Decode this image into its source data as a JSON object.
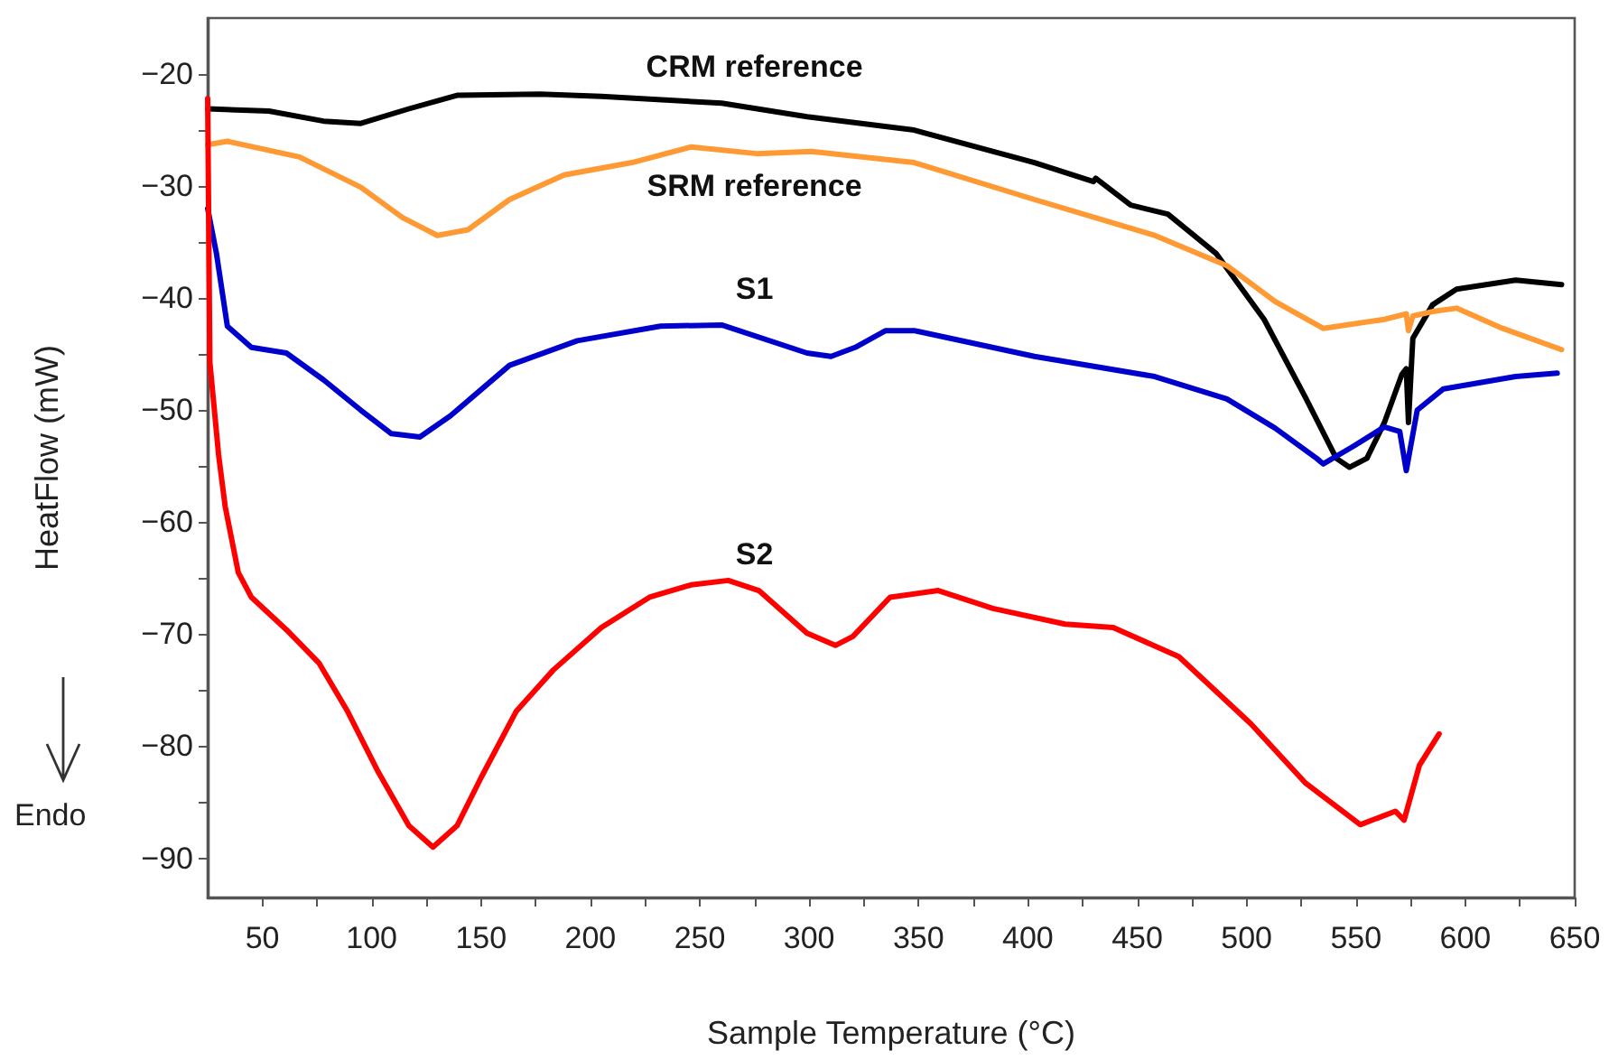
{
  "chart_data": {
    "type": "line",
    "xlabel": "Sample Temperature (°C)",
    "ylabel": "HeatFlow (mW)",
    "xlim": [
      25,
      650
    ],
    "ylim": [
      -93.5,
      -15
    ],
    "xticks": [
      {
        "value": 50,
        "label": "50"
      },
      {
        "value": 75,
        "label": null
      },
      {
        "value": 100,
        "label": "100"
      },
      {
        "value": 125,
        "label": null
      },
      {
        "value": 150,
        "label": "150"
      },
      {
        "value": 175,
        "label": null
      },
      {
        "value": 200,
        "label": "200"
      },
      {
        "value": 225,
        "label": null
      },
      {
        "value": 250,
        "label": "250"
      },
      {
        "value": 275,
        "label": null
      },
      {
        "value": 300,
        "label": "300"
      },
      {
        "value": 325,
        "label": null
      },
      {
        "value": 350,
        "label": "350"
      },
      {
        "value": 375,
        "label": null
      },
      {
        "value": 400,
        "label": "400"
      },
      {
        "value": 425,
        "label": null
      },
      {
        "value": 450,
        "label": "450"
      },
      {
        "value": 475,
        "label": null
      },
      {
        "value": 500,
        "label": "500"
      },
      {
        "value": 525,
        "label": null
      },
      {
        "value": 550,
        "label": "550"
      },
      {
        "value": 575,
        "label": null
      },
      {
        "value": 600,
        "label": "600"
      },
      {
        "value": 625,
        "label": null
      },
      {
        "value": 650,
        "label": "650"
      }
    ],
    "yticks": [
      {
        "value": -90,
        "label": "−90"
      },
      {
        "value": -85,
        "label": null
      },
      {
        "value": -80,
        "label": "−80"
      },
      {
        "value": -75,
        "label": null
      },
      {
        "value": -70,
        "label": "−70"
      },
      {
        "value": -65,
        "label": null
      },
      {
        "value": -60,
        "label": "−60"
      },
      {
        "value": -55,
        "label": null
      },
      {
        "value": -50,
        "label": "−50"
      },
      {
        "value": -45,
        "label": null
      },
      {
        "value": -40,
        "label": "−40"
      },
      {
        "value": -35,
        "label": null
      },
      {
        "value": -30,
        "label": "−30"
      },
      {
        "value": -25,
        "label": null
      },
      {
        "value": -20,
        "label": "−20"
      }
    ],
    "grid": false,
    "marker": "none",
    "line_style": "solid",
    "series": [
      {
        "name": "CRM reference",
        "color": "#000000",
        "x": [
          25,
          53,
          78,
          95,
          117,
          139,
          177,
          205,
          260,
          299,
          348,
          403,
          430,
          431,
          447,
          464,
          486,
          508,
          527,
          541,
          547,
          555,
          563,
          571,
          573,
          574,
          576,
          585,
          596,
          623,
          644
        ],
        "values": [
          -23.1,
          -23.3,
          -24.2,
          -24.4,
          -23.1,
          -21.9,
          -21.8,
          -22.0,
          -22.6,
          -23.8,
          -25.0,
          -27.9,
          -29.6,
          -29.3,
          -31.7,
          -32.5,
          -36.0,
          -41.9,
          -48.9,
          -54.3,
          -55.1,
          -54.3,
          -51.1,
          -46.8,
          -46.3,
          -51.1,
          -43.6,
          -40.6,
          -39.2,
          -38.4,
          -38.8
        ]
      },
      {
        "name": "SRM reference",
        "color": "#ff9933",
        "x": [
          25,
          34,
          67,
          95,
          114,
          130,
          144,
          163,
          188,
          219,
          246,
          276,
          301,
          348,
          403,
          458,
          491,
          513,
          535,
          563,
          573,
          574,
          576,
          585,
          596,
          617,
          644
        ],
        "values": [
          -26.3,
          -26.0,
          -27.4,
          -30.1,
          -32.8,
          -34.4,
          -33.9,
          -31.2,
          -29.0,
          -27.9,
          -26.5,
          -27.1,
          -26.9,
          -27.9,
          -31.2,
          -34.4,
          -37.1,
          -40.3,
          -42.7,
          -41.9,
          -41.4,
          -42.9,
          -41.6,
          -41.2,
          -40.9,
          -42.7,
          -44.6
        ]
      },
      {
        "name": "S1",
        "color": "#0000cc",
        "x": [
          25,
          29,
          34,
          45,
          61,
          78,
          95,
          109,
          122,
          136,
          163,
          194,
          232,
          260,
          299,
          310,
          321,
          335,
          348,
          403,
          458,
          491,
          513,
          532,
          535,
          549,
          563,
          570,
          573,
          578,
          590,
          623,
          642
        ],
        "values": [
          -32.0,
          -36.0,
          -42.5,
          -44.4,
          -44.9,
          -47.3,
          -50.0,
          -52.1,
          -52.4,
          -50.5,
          -46.0,
          -43.8,
          -42.5,
          -42.4,
          -44.9,
          -45.2,
          -44.4,
          -42.9,
          -42.9,
          -45.2,
          -47.0,
          -49.0,
          -51.6,
          -54.3,
          -54.8,
          -53.2,
          -51.5,
          -51.9,
          -55.4,
          -50.0,
          -48.1,
          -47.0,
          -46.7
        ]
      },
      {
        "name": "S2",
        "color": "#ff0000",
        "x": [
          25,
          26,
          30,
          33,
          39,
          45,
          61,
          76,
          89,
          103,
          117,
          128,
          139,
          150,
          166,
          183,
          205,
          227,
          246,
          263,
          277,
          299,
          312,
          320,
          337,
          359,
          384,
          417,
          439,
          469,
          502,
          527,
          552,
          568,
          572,
          579,
          588
        ],
        "values": [
          -22.2,
          -45.7,
          -54.0,
          -58.6,
          -64.5,
          -66.7,
          -69.6,
          -72.6,
          -76.9,
          -82.3,
          -87.1,
          -89.0,
          -87.1,
          -82.8,
          -76.9,
          -73.2,
          -69.4,
          -66.7,
          -65.6,
          -65.2,
          -66.1,
          -69.9,
          -71.0,
          -70.2,
          -66.7,
          -66.1,
          -67.7,
          -69.1,
          -69.4,
          -72.0,
          -78.0,
          -83.3,
          -87.0,
          -85.8,
          -86.6,
          -81.7,
          -78.9
        ]
      }
    ],
    "annotations": [
      "Endo"
    ]
  }
}
